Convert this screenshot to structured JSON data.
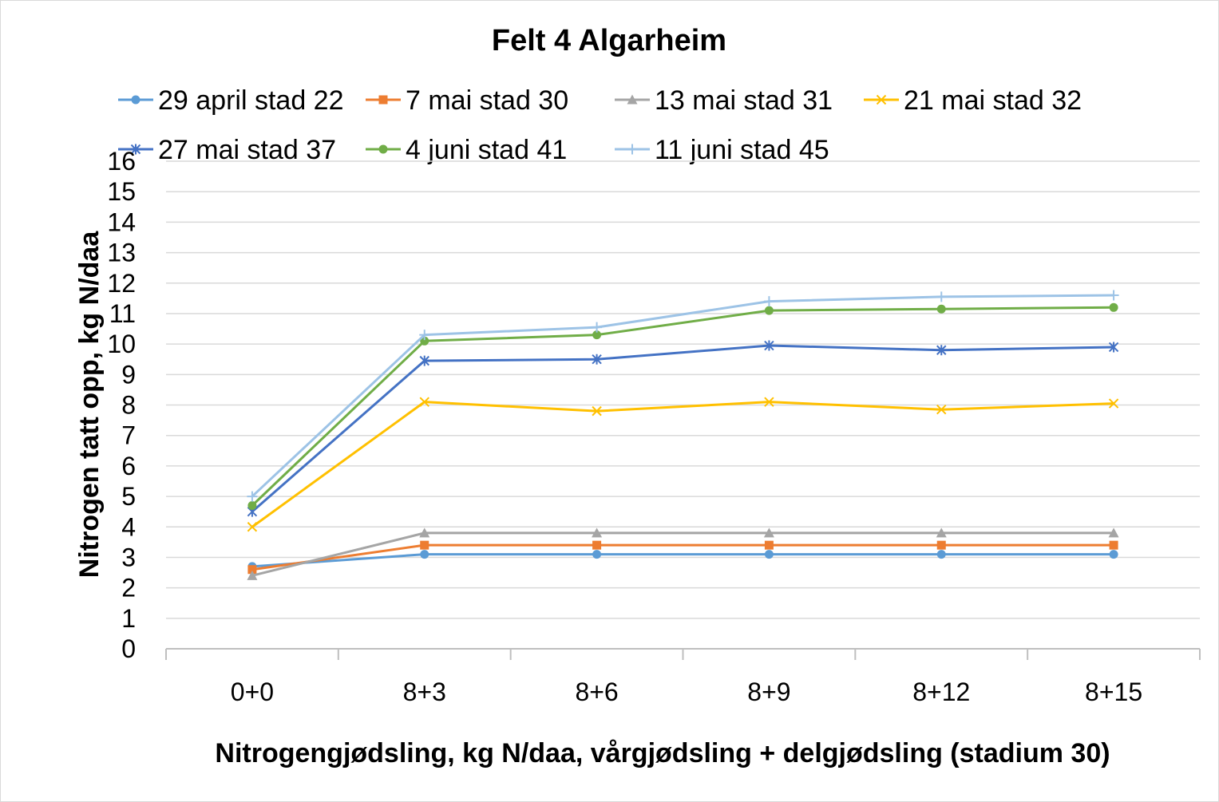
{
  "chart_data": {
    "type": "line",
    "title": "Felt 4 Algarheim",
    "xlabel": "Nitrogengjødsling, kg N/daa, vårgjødsling + delgjødsling (stadium 30)",
    "ylabel": "Nitrogen tatt opp, kg N/daa",
    "ylim": [
      0,
      16
    ],
    "yticks": [
      "0",
      "1",
      "2",
      "3",
      "4",
      "5",
      "6",
      "7",
      "8",
      "9",
      "10",
      "11",
      "12",
      "13",
      "14",
      "15",
      "16"
    ],
    "categories": [
      "0+0",
      "8+3",
      "8+6",
      "8+9",
      "8+12",
      "8+15"
    ],
    "grid": true,
    "legend_position": "top",
    "series": [
      {
        "name": "29 april stad 22",
        "color": "#5b9bd5",
        "marker": "circle",
        "values": [
          2.7,
          3.1,
          3.1,
          3.1,
          3.1,
          3.1
        ]
      },
      {
        "name": "7 mai stad 30",
        "color": "#ed7d31",
        "marker": "square",
        "values": [
          2.6,
          3.4,
          3.4,
          3.4,
          3.4,
          3.4
        ]
      },
      {
        "name": "13 mai stad 31",
        "color": "#a5a5a5",
        "marker": "triangle",
        "values": [
          2.4,
          3.8,
          3.8,
          3.8,
          3.8,
          3.8
        ]
      },
      {
        "name": "21 mai stad 32",
        "color": "#ffc000",
        "marker": "x",
        "values": [
          4.0,
          8.1,
          7.8,
          8.1,
          7.85,
          8.05
        ]
      },
      {
        "name": "27 mai stad 37",
        "color": "#4472c4",
        "marker": "star",
        "values": [
          4.5,
          9.45,
          9.5,
          9.95,
          9.8,
          9.9
        ]
      },
      {
        "name": "4 juni stad 41",
        "color": "#70ad47",
        "marker": "circle",
        "values": [
          4.7,
          10.1,
          10.3,
          11.1,
          11.15,
          11.2
        ]
      },
      {
        "name": "11 juni stad 45",
        "color": "#9dc3e6",
        "marker": "plus",
        "values": [
          5.0,
          10.3,
          10.55,
          11.4,
          11.55,
          11.6
        ]
      }
    ]
  }
}
